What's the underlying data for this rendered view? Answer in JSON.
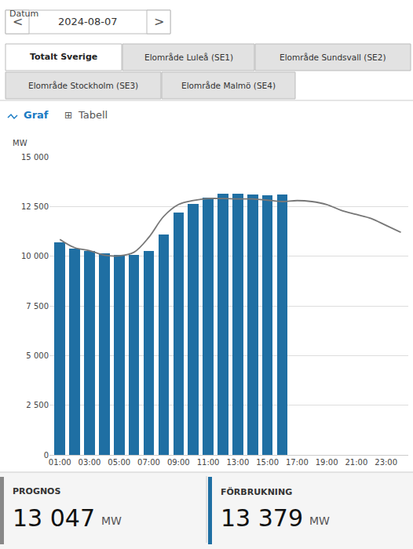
{
  "chart_data": {
    "type": "bar",
    "categories": [
      "01:00",
      null,
      "03:00",
      null,
      "05:00",
      null,
      "07:00",
      null,
      "09:00",
      null,
      "11:00",
      null,
      "13:00",
      null,
      "15:00",
      null,
      "17:00",
      null,
      "19:00",
      null,
      "21:00",
      null,
      "23:00",
      null
    ],
    "series": [
      {
        "type": "bar",
        "color": "#1f6fa3",
        "values": [
          10700,
          10380,
          10260,
          10130,
          10060,
          10060,
          10280,
          11100,
          12200,
          12650,
          12950,
          13150,
          13150,
          13100,
          13050,
          13100,
          0,
          0,
          0,
          0,
          0,
          0,
          0,
          0
        ]
      },
      {
        "type": "line",
        "color": "#777777",
        "line_style": "solid",
        "values": [
          10850,
          10430,
          10280,
          10050,
          10020,
          10200,
          10950,
          12000,
          12600,
          12800,
          12900,
          12900,
          12880,
          12880,
          12820,
          12750,
          12800,
          12750,
          12600,
          12300,
          12100,
          11900,
          11550,
          11200
        ]
      }
    ],
    "ylabel": "MW",
    "ylim": [
      0,
      15000
    ],
    "yticks": [
      0,
      {
        "value": 2500,
        "label": "2 500"
      },
      {
        "value": 5000,
        "label": "5 000"
      },
      {
        "value": 7500,
        "label": "7 500"
      },
      {
        "value": 10000,
        "label": "10 000"
      },
      {
        "value": 12500,
        "label": "12 500"
      },
      {
        "value": 15000,
        "label": "15 000"
      }
    ],
    "grid": true,
    "annotations": [
      "Datum",
      "<",
      "2024-08-07",
      ">",
      "Totalt Sverige",
      "Elområde Luleå (SE1)",
      "Elområde Sundsvall (SE2)",
      "Elområde Stockholm (SE3)",
      "Elområde Malmö (SE4)",
      "Graf",
      "⊞",
      "Tabell",
      "PROGNOS",
      "13 047",
      "MW",
      "FÖRBRUKNING",
      "13 379",
      "MW"
    ]
  }
}
